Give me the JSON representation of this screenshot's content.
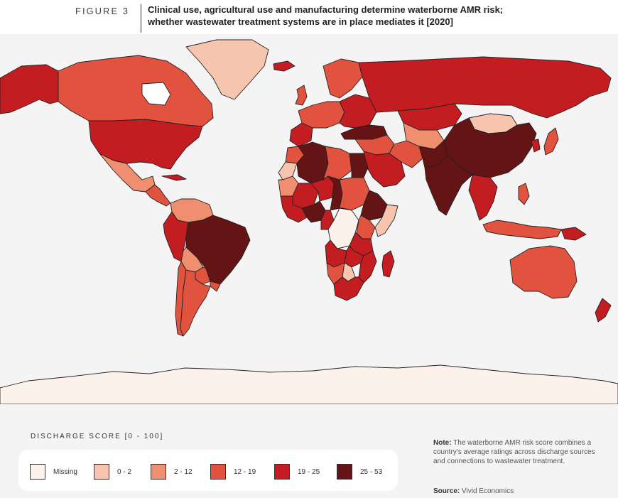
{
  "header": {
    "figure_label": "FIGURE 3",
    "title_line1": "Clinical use, agricultural use and manufacturing determine waterborne AMR risk;",
    "title_line2": "whether wastewater treatment systems are in place mediates it [2020]"
  },
  "legend": {
    "title": "DISCHARGE SCORE [0 - 100]",
    "items": [
      {
        "label": "Missing",
        "color": "#fdf1ec"
      },
      {
        "label": "0 - 2",
        "color": "#f7c4ad"
      },
      {
        "label": "2 - 12",
        "color": "#ef8f70"
      },
      {
        "label": "12 - 19",
        "color": "#e2533f"
      },
      {
        "label": "19 - 25",
        "color": "#c41d21"
      },
      {
        "label": "25 - 53",
        "color": "#641414"
      }
    ]
  },
  "note": {
    "label": "Note:",
    "text": "The waterborne AMR risk score combines a country's average ratings across discharge sources and connections to wastewater treatment."
  },
  "source": {
    "label": "Source:",
    "text": "Vivid Economics"
  },
  "map": {
    "background_color": "#f4f4f4",
    "border_color": "#222222",
    "regions": [
      {
        "name": "Alaska",
        "class": "19 - 25"
      },
      {
        "name": "Canada",
        "class": "12 - 19"
      },
      {
        "name": "Greenland",
        "class": "0 - 2"
      },
      {
        "name": "United States",
        "class": "19 - 25"
      },
      {
        "name": "Mexico",
        "class": "2 - 12"
      },
      {
        "name": "Central America",
        "class": "12 - 19"
      },
      {
        "name": "Cuba",
        "class": "19 - 25"
      },
      {
        "name": "Colombia / Venezuela",
        "class": "2 - 12"
      },
      {
        "name": "Ecuador / Peru",
        "class": "19 - 25"
      },
      {
        "name": "Brazil",
        "class": "25 - 53"
      },
      {
        "name": "Bolivia",
        "class": "2 - 12"
      },
      {
        "name": "Paraguay",
        "class": "12 - 19"
      },
      {
        "name": "Chile",
        "class": "12 - 19"
      },
      {
        "name": "Argentina",
        "class": "12 - 19"
      },
      {
        "name": "Uruguay",
        "class": "12 - 19"
      },
      {
        "name": "Iceland",
        "class": "19 - 25"
      },
      {
        "name": "United Kingdom",
        "class": "12 - 19"
      },
      {
        "name": "Scandinavia",
        "class": "12 - 19"
      },
      {
        "name": "Western Europe",
        "class": "12 - 19"
      },
      {
        "name": "Iberia",
        "class": "19 - 25"
      },
      {
        "name": "Eastern Europe",
        "class": "19 - 25"
      },
      {
        "name": "Turkey",
        "class": "25 - 53"
      },
      {
        "name": "Russia",
        "class": "19 - 25"
      },
      {
        "name": "Kazakhstan",
        "class": "19 - 25"
      },
      {
        "name": "Mongolia",
        "class": "0 - 2"
      },
      {
        "name": "China",
        "class": "25 - 53"
      },
      {
        "name": "Central Asia",
        "class": "2 - 12"
      },
      {
        "name": "Middle East",
        "class": "12 - 19"
      },
      {
        "name": "Saudi Arabia",
        "class": "19 - 25"
      },
      {
        "name": "Iran",
        "class": "12 - 19"
      },
      {
        "name": "Pakistan",
        "class": "25 - 53"
      },
      {
        "name": "India",
        "class": "25 - 53"
      },
      {
        "name": "Southeast Asia",
        "class": "19 - 25"
      },
      {
        "name": "Japan",
        "class": "12 - 19"
      },
      {
        "name": "Korea",
        "class": "19 - 25"
      },
      {
        "name": "Indonesia",
        "class": "12 - 19"
      },
      {
        "name": "Philippines",
        "class": "12 - 19"
      },
      {
        "name": "Papua New Guinea",
        "class": "19 - 25"
      },
      {
        "name": "Australia",
        "class": "12 - 19"
      },
      {
        "name": "New Zealand",
        "class": "19 - 25"
      },
      {
        "name": "Morocco",
        "class": "12 - 19"
      },
      {
        "name": "Western Sahara",
        "class": "0 - 2"
      },
      {
        "name": "Algeria",
        "class": "25 - 53"
      },
      {
        "name": "Libya",
        "class": "12 - 19"
      },
      {
        "name": "Egypt",
        "class": "25 - 53"
      },
      {
        "name": "Mauritania",
        "class": "2 - 12"
      },
      {
        "name": "Mali",
        "class": "19 - 25"
      },
      {
        "name": "Niger",
        "class": "19 - 25"
      },
      {
        "name": "Chad",
        "class": "25 - 53"
      },
      {
        "name": "Sudan",
        "class": "12 - 19"
      },
      {
        "name": "Ethiopia",
        "class": "25 - 53"
      },
      {
        "name": "Somalia",
        "class": "0 - 2"
      },
      {
        "name": "West Africa",
        "class": "19 - 25"
      },
      {
        "name": "Nigeria",
        "class": "25 - 53"
      },
      {
        "name": "Cameroon",
        "class": "19 - 25"
      },
      {
        "name": "DR Congo",
        "class": "Missing"
      },
      {
        "name": "Kenya",
        "class": "12 - 19"
      },
      {
        "name": "Tanzania",
        "class": "19 - 25"
      },
      {
        "name": "Angola",
        "class": "19 - 25"
      },
      {
        "name": "Zambia",
        "class": "19 - 25"
      },
      {
        "name": "Mozambique",
        "class": "19 - 25"
      },
      {
        "name": "Namibia",
        "class": "12 - 19"
      },
      {
        "name": "Botswana",
        "class": "0 - 2"
      },
      {
        "name": "South Africa",
        "class": "19 - 25"
      },
      {
        "name": "Madagascar",
        "class": "19 - 25"
      },
      {
        "name": "Antarctica",
        "class": "Missing"
      }
    ]
  }
}
